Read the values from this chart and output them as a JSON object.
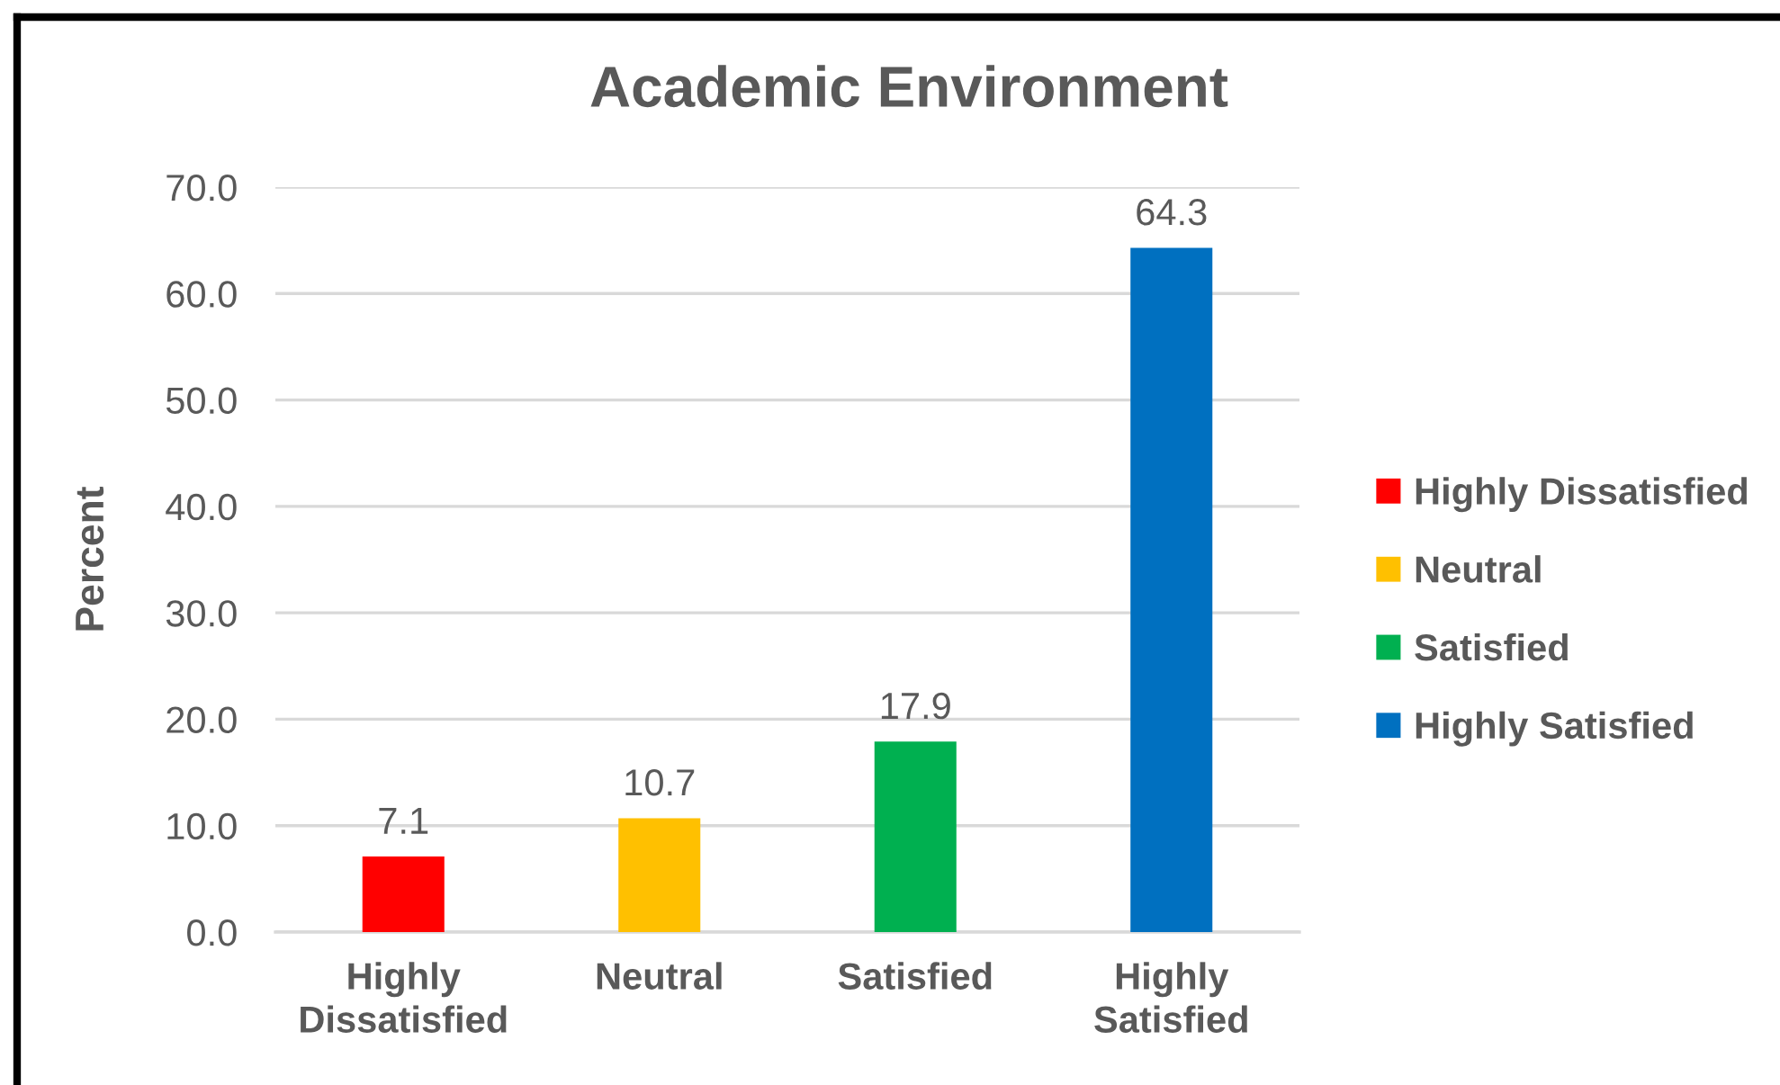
{
  "chart_data": {
    "type": "bar",
    "title": "Academic Environment",
    "ylabel": "Percent",
    "categories": [
      "Highly\nDissatisfied",
      "Neutral",
      "Satisfied",
      "Highly\nSatisfied"
    ],
    "series": [
      {
        "name": "Highly Dissatisfied",
        "color": "#ff0000",
        "values": [
          7.1,
          null,
          null,
          null
        ]
      },
      {
        "name": "Neutral",
        "color": "#ffc000",
        "values": [
          null,
          10.7,
          null,
          null
        ]
      },
      {
        "name": "Satisfied",
        "color": "#00b050",
        "values": [
          null,
          null,
          17.9,
          null
        ]
      },
      {
        "name": "Highly Satisfied",
        "color": "#0070c0",
        "values": [
          null,
          null,
          null,
          64.3
        ]
      }
    ],
    "stacked": true,
    "ylim": [
      0,
      70
    ],
    "yticks": [
      {
        "value": 0,
        "label": "0.0"
      },
      {
        "value": 10,
        "label": "10.0"
      },
      {
        "value": 20,
        "label": "20.0"
      },
      {
        "value": 30,
        "label": "30.0"
      },
      {
        "value": 40,
        "label": "40.0"
      },
      {
        "value": 50,
        "label": "50.0"
      },
      {
        "value": 60,
        "label": "60.0"
      },
      {
        "value": 70,
        "label": "70.0"
      }
    ],
    "grid": "y",
    "legend": "right",
    "data_labels": true
  }
}
